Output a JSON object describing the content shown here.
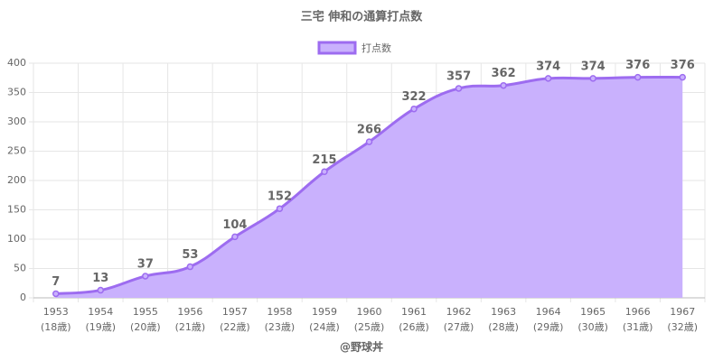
{
  "chart_data": {
    "type": "area",
    "title": "三宅 伸和の通算打点数",
    "categories": [
      "1953",
      "1954",
      "1955",
      "1956",
      "1957",
      "1958",
      "1959",
      "1960",
      "1961",
      "1962",
      "1963",
      "1964",
      "1965",
      "1966",
      "1967"
    ],
    "category_sublabels": [
      "(18歳)",
      "(19歳)",
      "(20歳)",
      "(21歳)",
      "(22歳)",
      "(23歳)",
      "(24歳)",
      "(25歳)",
      "(26歳)",
      "(27歳)",
      "(28歳)",
      "(29歳)",
      "(30歳)",
      "(31歳)",
      "(32歳)"
    ],
    "series": [
      {
        "name": "打点数",
        "color": "#9d6cf0",
        "fill": "#c9b1fd",
        "values": [
          7,
          13,
          37,
          53,
          104,
          152,
          215,
          266,
          322,
          357,
          362,
          374,
          374,
          376,
          376
        ]
      }
    ],
    "ylim": [
      0,
      400
    ],
    "yticks": [
      0,
      50,
      100,
      150,
      200,
      250,
      300,
      350,
      400
    ],
    "grid": true,
    "legend": "top",
    "footer": "@野球丼"
  }
}
